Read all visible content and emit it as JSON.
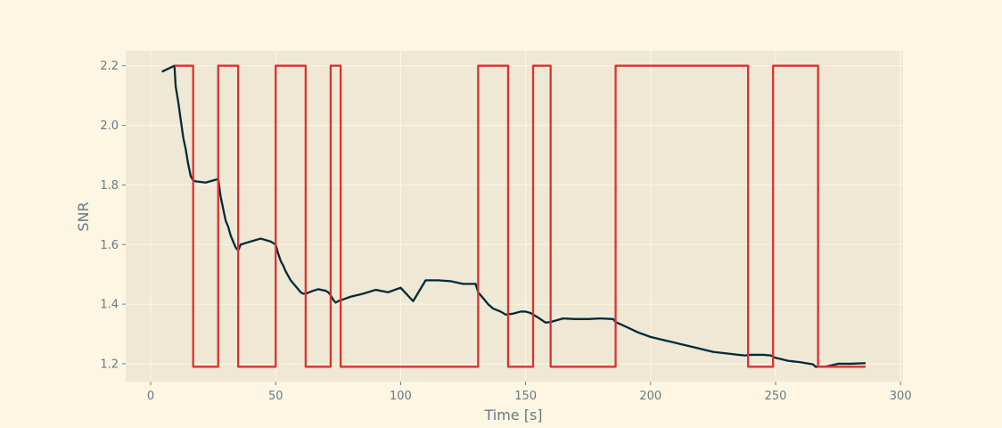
{
  "chart_data": {
    "type": "line",
    "xlabel": "Time [s]",
    "ylabel": "SNR",
    "xlim": [
      -10,
      301
    ],
    "ylim": [
      1.14,
      2.25
    ],
    "x_ticks": [
      0,
      50,
      100,
      150,
      200,
      250,
      300
    ],
    "y_ticks": [
      1.2,
      1.4,
      1.6,
      1.8,
      2.0,
      2.2
    ],
    "y_tick_labels": [
      "1.2",
      "1.4",
      "1.6",
      "1.8",
      "2.0",
      "2.2"
    ],
    "grid": true,
    "colors": {
      "background": "#fdf6e3",
      "plot_area": "#eee8d5",
      "grid": "#fdf6e3",
      "snr": "#002b36",
      "state": "#dc322f",
      "text": "#657b83"
    },
    "series": [
      {
        "x": [
          4.5,
          9.5,
          10,
          11,
          12,
          13,
          14,
          15,
          16,
          17,
          18,
          22,
          27,
          28,
          29,
          30,
          31,
          32,
          33,
          34,
          35,
          36,
          40,
          44,
          48,
          50,
          51,
          52,
          53,
          54,
          56,
          58,
          60,
          61,
          62,
          65,
          67,
          70,
          71,
          72,
          73,
          74,
          75,
          80,
          85,
          90,
          95,
          100,
          105,
          110,
          115,
          120,
          125,
          130,
          131,
          133,
          135,
          137,
          140,
          142,
          145,
          148,
          150,
          152,
          155,
          158,
          160,
          165,
          170,
          175,
          180,
          185,
          186,
          190,
          195,
          200,
          205,
          210,
          215,
          220,
          225,
          230,
          235,
          238,
          240,
          245,
          248,
          250,
          255,
          260,
          265,
          266,
          270,
          275,
          280,
          286
        ],
        "y": [
          2.18,
          2.2,
          2.13,
          2.08,
          2.02,
          1.96,
          1.92,
          1.87,
          1.83,
          1.815,
          1.812,
          1.808,
          1.82,
          1.76,
          1.72,
          1.68,
          1.66,
          1.63,
          1.61,
          1.59,
          1.58,
          1.6,
          1.61,
          1.62,
          1.61,
          1.6,
          1.57,
          1.545,
          1.53,
          1.51,
          1.48,
          1.46,
          1.44,
          1.435,
          1.435,
          1.445,
          1.45,
          1.445,
          1.44,
          1.43,
          1.415,
          1.405,
          1.41,
          1.425,
          1.435,
          1.448,
          1.44,
          1.455,
          1.41,
          1.48,
          1.48,
          1.477,
          1.468,
          1.468,
          1.44,
          1.42,
          1.4,
          1.385,
          1.375,
          1.365,
          1.368,
          1.375,
          1.375,
          1.37,
          1.355,
          1.338,
          1.34,
          1.352,
          1.35,
          1.35,
          1.352,
          1.35,
          1.34,
          1.325,
          1.305,
          1.29,
          1.28,
          1.27,
          1.26,
          1.25,
          1.24,
          1.235,
          1.23,
          1.228,
          1.23,
          1.23,
          1.228,
          1.22,
          1.21,
          1.205,
          1.198,
          1.19,
          1.19,
          1.2,
          1.2,
          1.202
        ]
      },
      {
        "x": [
          9.5,
          17,
          17,
          27,
          27,
          35,
          35,
          50,
          50,
          62,
          62,
          72,
          72,
          76,
          76,
          131,
          131,
          143,
          143,
          153,
          153,
          160,
          160,
          186,
          186,
          239,
          239,
          249,
          249,
          267,
          267,
          286
        ],
        "y": [
          2.2,
          2.2,
          1.19,
          1.19,
          2.2,
          2.2,
          1.19,
          1.19,
          2.2,
          2.2,
          1.19,
          1.19,
          2.2,
          2.2,
          1.19,
          1.19,
          2.2,
          2.2,
          1.19,
          1.19,
          2.2,
          2.2,
          1.19,
          1.19,
          2.2,
          2.2,
          1.19,
          1.19,
          2.2,
          2.2,
          1.19,
          1.19
        ]
      }
    ]
  }
}
